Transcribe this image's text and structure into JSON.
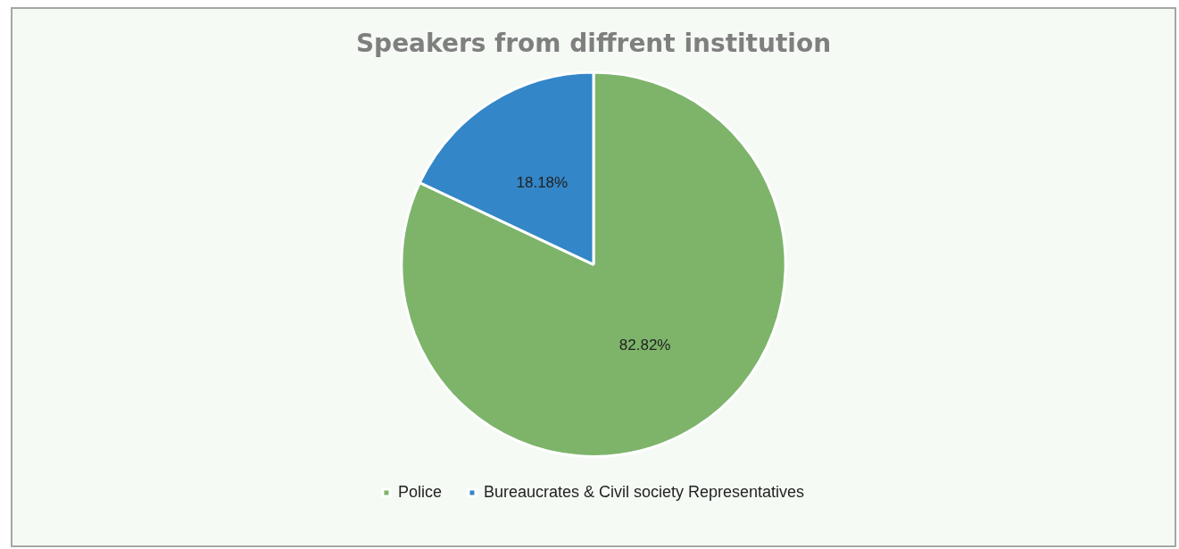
{
  "chart_data": {
    "type": "pie",
    "title": "Speakers from diffrent institution",
    "categories": [
      "Police",
      "Bureaucrates & Civil society Representatives"
    ],
    "values": [
      82.82,
      18.18
    ],
    "colors": [
      "#7db46a",
      "#3386c7"
    ],
    "value_labels": [
      "82.82%",
      "18.18%"
    ],
    "legend": "bottom"
  }
}
